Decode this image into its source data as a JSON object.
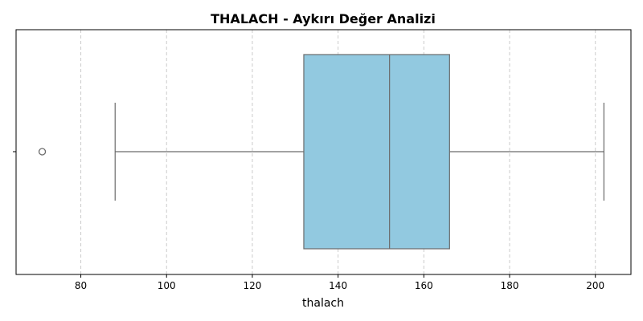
{
  "chart_data": {
    "type": "box",
    "title": "THALACH - Aykırı Değer Analizi",
    "xlabel": "thalach",
    "ylabel": "",
    "orientation": "horizontal",
    "xlim": [
      64.9,
      208.3
    ],
    "xticks": [
      80,
      100,
      120,
      140,
      160,
      180,
      200
    ],
    "grid": {
      "x": true,
      "style": "dashed"
    },
    "series": [
      {
        "min": 88,
        "q1": 132,
        "median": 152,
        "q3": 166,
        "max": 202,
        "outliers": [
          71
        ]
      }
    ],
    "colors": {
      "box_fill": "#92c9e0",
      "stroke": "#6b6b6b",
      "grid": "#cccccc"
    }
  }
}
